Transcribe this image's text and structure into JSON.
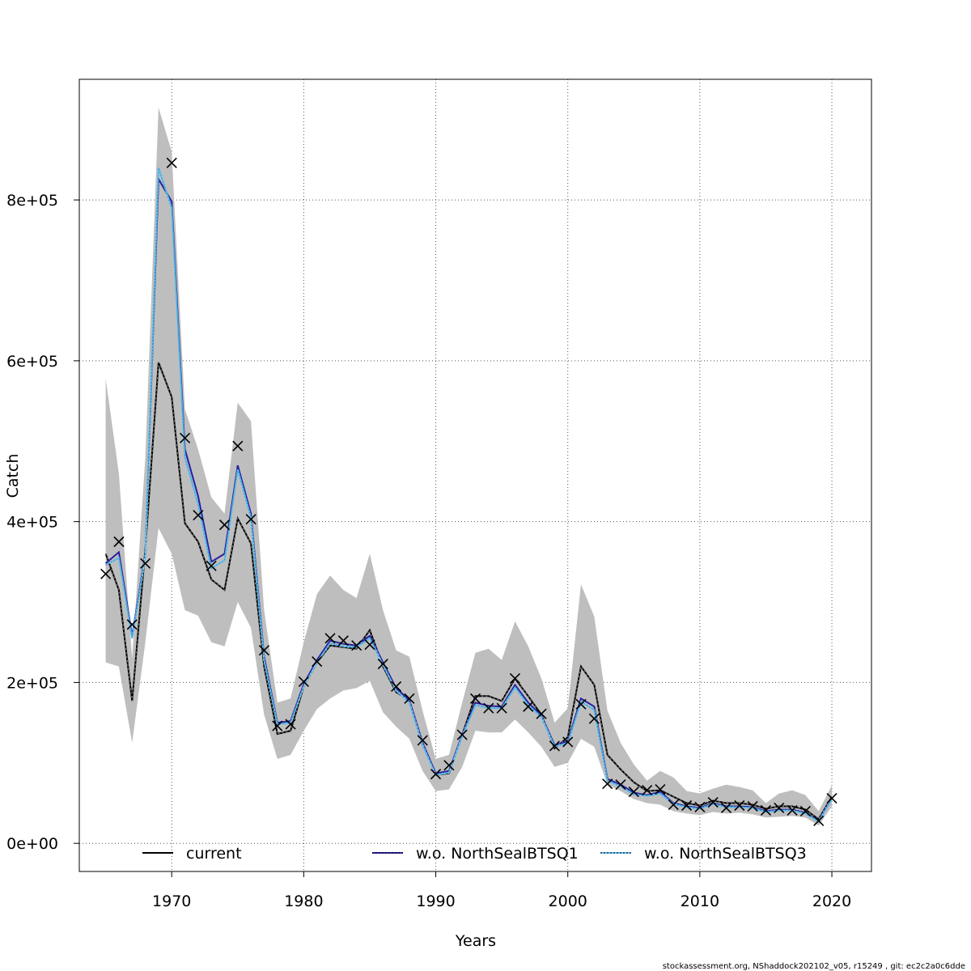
{
  "chart_data": {
    "type": "line",
    "xlabel": "Years",
    "ylabel": "Catch",
    "xlim": [
      1963,
      2023
    ],
    "ylim": [
      -35000,
      950000
    ],
    "xticks": [
      1970,
      1980,
      1990,
      2000,
      2010,
      2020
    ],
    "yticks": [
      0,
      200000,
      400000,
      600000,
      800000
    ],
    "ytick_labels": [
      "0e+00",
      "2e+05",
      "4e+05",
      "6e+05",
      "8e+05"
    ],
    "grid": true,
    "legend_position": "bottom",
    "x": [
      1965,
      1966,
      1967,
      1968,
      1969,
      1970,
      1971,
      1972,
      1973,
      1974,
      1975,
      1976,
      1977,
      1978,
      1979,
      1980,
      1981,
      1982,
      1983,
      1984,
      1985,
      1986,
      1987,
      1988,
      1989,
      1990,
      1991,
      1992,
      1993,
      1994,
      1995,
      1996,
      1997,
      1998,
      1999,
      2000,
      2001,
      2002,
      2003,
      2004,
      2005,
      2006,
      2007,
      2008,
      2009,
      2010,
      2011,
      2012,
      2013,
      2014,
      2015,
      2016,
      2017,
      2018,
      2019,
      2020
    ],
    "observed": [
      335000,
      375000,
      272000,
      348000,
      null,
      846000,
      504000,
      408000,
      345000,
      396000,
      494000,
      403000,
      240000,
      146000,
      148000,
      201000,
      226000,
      255000,
      252000,
      246000,
      247000,
      223000,
      195000,
      180000,
      128000,
      86000,
      97000,
      135000,
      180000,
      168000,
      168000,
      205000,
      170000,
      161000,
      121000,
      126000,
      173000,
      155000,
      74000,
      73000,
      64000,
      66000,
      67000,
      48000,
      47000,
      45000,
      51000,
      44000,
      47000,
      46000,
      41000,
      44000,
      41000,
      40000,
      28000,
      56000
    ],
    "band_upper": [
      578000,
      460000,
      230000,
      480000,
      915000,
      860000,
      540000,
      490000,
      430000,
      410000,
      548000,
      525000,
      290000,
      175000,
      180000,
      250000,
      310000,
      333000,
      315000,
      305000,
      360000,
      290000,
      240000,
      232000,
      165000,
      105000,
      110000,
      175000,
      237000,
      242000,
      228000,
      276000,
      245000,
      205000,
      150000,
      168000,
      322000,
      282000,
      165000,
      125000,
      98000,
      78000,
      90000,
      82000,
      65000,
      62000,
      68000,
      73000,
      70000,
      66000,
      50000,
      62000,
      66000,
      60000,
      40000,
      72000
    ],
    "band_lower": [
      225000,
      220000,
      125000,
      250000,
      392000,
      360000,
      290000,
      283000,
      250000,
      245000,
      300000,
      268000,
      160000,
      105000,
      110000,
      140000,
      167000,
      180000,
      190000,
      193000,
      202000,
      163000,
      145000,
      130000,
      90000,
      65000,
      67000,
      95000,
      140000,
      138000,
      138000,
      154000,
      138000,
      120000,
      95000,
      100000,
      130000,
      120000,
      73000,
      65000,
      55000,
      50000,
      48000,
      40000,
      37000,
      35000,
      39000,
      37000,
      38000,
      36000,
      32000,
      33000,
      34000,
      32000,
      22000,
      46000
    ],
    "series": [
      {
        "name": "current",
        "color": "#000000",
        "values": [
          360000,
          315000,
          177000,
          366000,
          598000,
          555000,
          398000,
          375000,
          328000,
          315000,
          404000,
          373000,
          220000,
          136000,
          140000,
          195000,
          225000,
          246000,
          244000,
          242000,
          265000,
          220000,
          188000,
          178000,
          125000,
          85000,
          87000,
          135000,
          183000,
          183000,
          177000,
          205000,
          183000,
          160000,
          118000,
          132000,
          220000,
          197000,
          110000,
          92000,
          76000,
          65000,
          66000,
          58000,
          50000,
          47000,
          53000,
          50000,
          50000,
          48000,
          43000,
          46000,
          46000,
          42000,
          30000,
          58000
        ]
      },
      {
        "name": "w.o. NorthSealBTSQ1",
        "color": "#2A1FA8",
        "values": [
          348000,
          362000,
          258000,
          360000,
          826000,
          798000,
          490000,
          432000,
          350000,
          360000,
          470000,
          410000,
          232000,
          150000,
          152000,
          198000,
          228000,
          252000,
          248000,
          246000,
          258000,
          225000,
          193000,
          178000,
          125000,
          87000,
          90000,
          135000,
          175000,
          171000,
          170000,
          197000,
          175000,
          159000,
          122000,
          127000,
          180000,
          170000,
          80000,
          73000,
          63000,
          60000,
          64000,
          50000,
          46000,
          44000,
          50000,
          46000,
          46000,
          45000,
          40000,
          42000,
          42000,
          38000,
          28000,
          57000
        ]
      },
      {
        "name": "w.o. NorthSealBTSQ3",
        "color": "#5BC0F0",
        "values": [
          346000,
          355000,
          255000,
          357000,
          840000,
          790000,
          480000,
          422000,
          342000,
          352000,
          465000,
          405000,
          228000,
          148000,
          150000,
          195000,
          225000,
          249000,
          245000,
          244000,
          255000,
          222000,
          190000,
          175000,
          122000,
          85000,
          88000,
          133000,
          172000,
          168000,
          168000,
          194000,
          172000,
          157000,
          120000,
          125000,
          176000,
          166000,
          78000,
          71000,
          61000,
          59000,
          62000,
          49000,
          45000,
          43000,
          49000,
          45000,
          45000,
          44000,
          39000,
          41000,
          41000,
          37000,
          27000,
          55000
        ]
      }
    ]
  },
  "legend": {
    "items": [
      {
        "label": "current",
        "color": "#000000"
      },
      {
        "label": "w.o. NorthSealBTSQ1",
        "color": "#2A1FA8"
      },
      {
        "label": "w.o. NorthSealBTSQ3",
        "color": "#5BC0F0"
      }
    ]
  },
  "colors": {
    "band": "#BEBEBE",
    "grid": "#555555"
  },
  "footer": {
    "text": "stockassessment.org, NShaddock202102_v05, r15249 , git: ec2c2a0c6dde"
  }
}
